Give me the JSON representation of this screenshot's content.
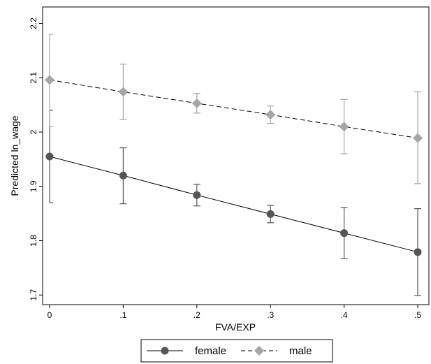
{
  "chart_data": {
    "type": "line",
    "xlabel": "FVA/EXP",
    "ylabel": "Predicted ln_wage",
    "x": [
      0,
      0.1,
      0.2,
      0.3,
      0.4,
      0.5
    ],
    "x_tick_labels": [
      "0",
      ".1",
      ".2",
      ".3",
      ".4",
      ".5"
    ],
    "y_ticks": [
      1.7,
      1.8,
      1.9,
      2,
      2.1,
      2.2
    ],
    "y_tick_labels": [
      "1.7",
      "1.8",
      "1.9",
      "2",
      "2.1",
      "2.2"
    ],
    "xlim": [
      0,
      0.5
    ],
    "ylim": [
      1.69,
      2.22
    ],
    "grid": false,
    "legend_position": "bottom",
    "series": [
      {
        "name": "female",
        "color": "#555555",
        "line_style": "solid",
        "marker": "circle",
        "values": [
          1.955,
          1.92,
          1.884,
          1.849,
          1.814,
          1.779
        ],
        "ci_low": [
          1.87,
          1.868,
          1.864,
          1.833,
          1.767,
          1.699
        ],
        "ci_high": [
          2.04,
          1.971,
          1.904,
          1.865,
          1.861,
          1.859
        ]
      },
      {
        "name": "male",
        "color": "#a6a6a6",
        "line_style": "dashed",
        "marker": "diamond",
        "values": [
          2.096,
          2.074,
          2.053,
          2.032,
          2.01,
          1.989
        ],
        "ci_low": [
          2.01,
          2.023,
          2.035,
          2.016,
          1.96,
          1.905
        ],
        "ci_high": [
          2.18,
          2.125,
          2.071,
          2.048,
          2.06,
          2.074
        ]
      }
    ]
  }
}
